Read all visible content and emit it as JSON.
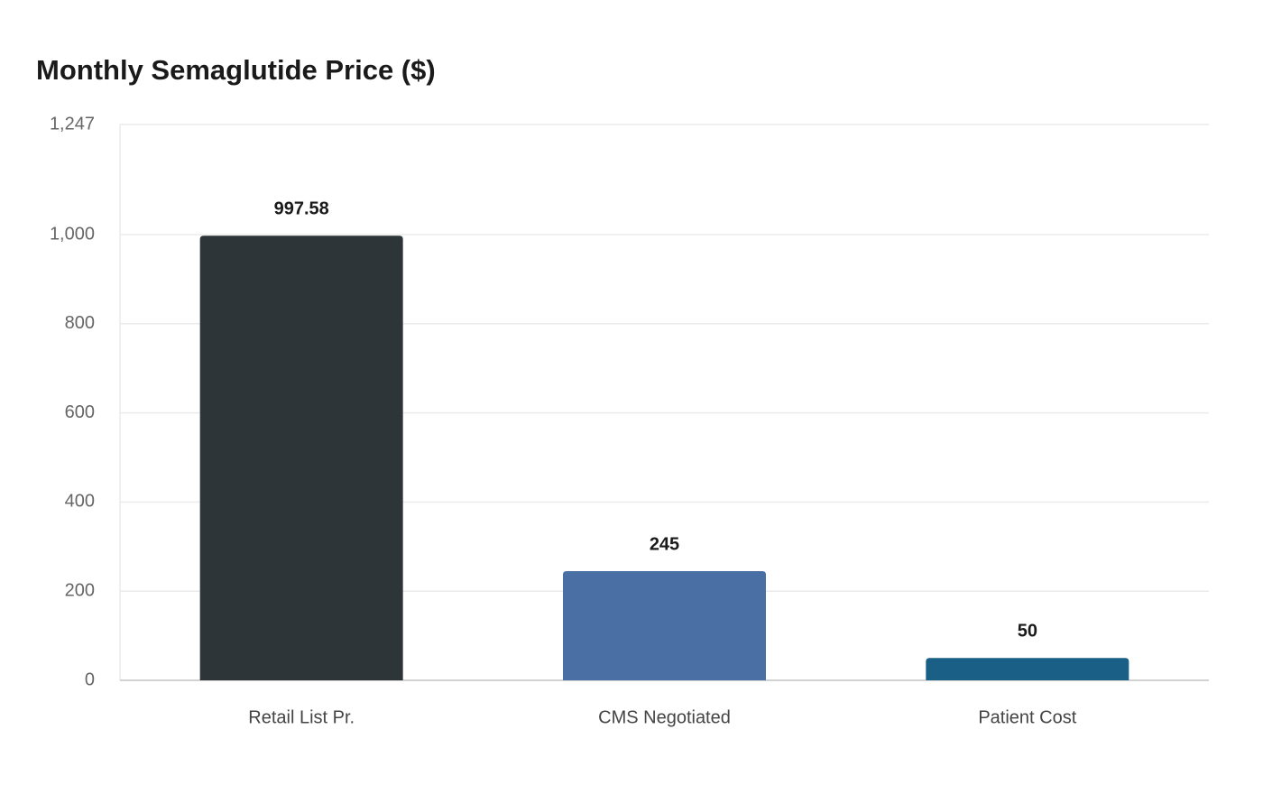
{
  "chart_data": {
    "type": "bar",
    "title": "Monthly Semaglutide Price ($)",
    "categories": [
      "Retail List Pr.",
      "CMS Negotiated",
      "Patient Cost"
    ],
    "values": [
      997.58,
      245,
      50
    ],
    "colors": [
      "#2e3538",
      "#4a6fa5",
      "#1a5f85"
    ],
    "ylim": [
      0,
      1247
    ],
    "yticks": [
      0,
      200,
      400,
      600,
      800,
      {
        "value": 1000,
        "label": "1,000"
      },
      {
        "value": 1247,
        "label": "1,247"
      }
    ],
    "grid": true
  }
}
